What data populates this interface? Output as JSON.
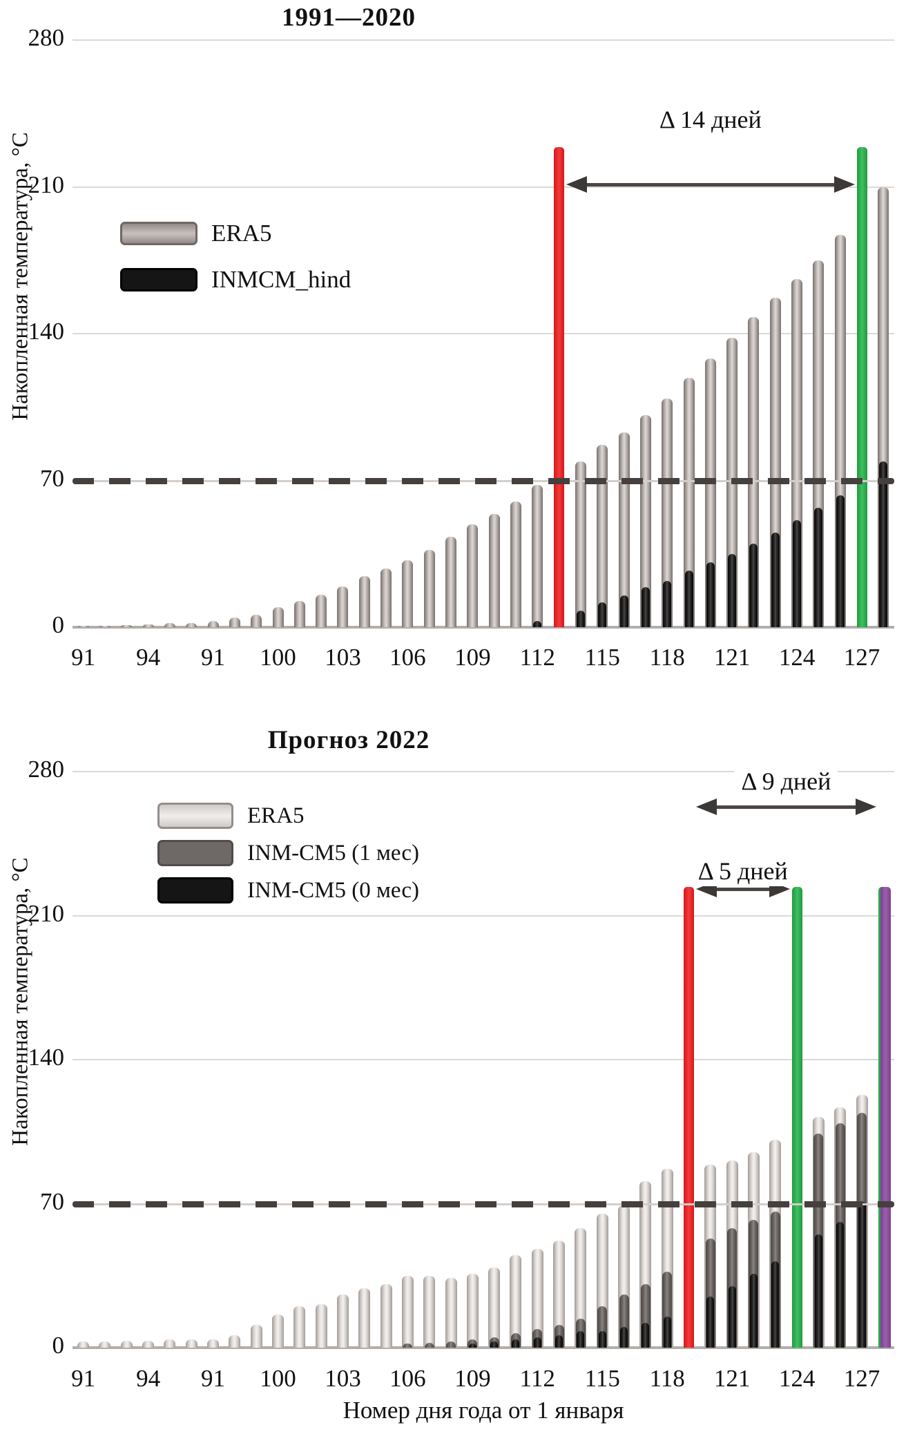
{
  "y_axis_title": "Накопленная температура, °C",
  "x_axis_title": "Номер дня года от 1 января",
  "colors": {
    "era5_hind": "#a9a19d",
    "era5_2022": "#dedad8",
    "inm_1mes": "#6f6a67",
    "black_series": "#141414",
    "red_marker": "#ed2224",
    "green_marker": "#2aa84a",
    "purple_marker": "#8d4f9f",
    "grid": "#dbd9d7",
    "dash_line": "#45403d",
    "arrow": "#4a4542"
  },
  "chart_data": [
    {
      "type": "bar",
      "title": "1991—2020",
      "ylim": [
        0,
        280
      ],
      "y_ticks": [
        "280",
        "210",
        "140",
        "70",
        "0"
      ],
      "x_ticks": [
        "91",
        "94",
        "91",
        "100",
        "103",
        "106",
        "109",
        "112",
        "115",
        "118",
        "121",
        "124",
        "127"
      ],
      "day_start": 91,
      "day_end": 128,
      "threshold_value": 70,
      "legend": [
        {
          "label": "ERA5",
          "color_key": "era5_hind"
        },
        {
          "label": "INMCM_hind",
          "color_key": "black_series"
        }
      ],
      "series": [
        {
          "name": "ERA5",
          "color_key": "era5_hind",
          "values": [
            0.5,
            0.8,
            1,
            1.2,
            2,
            2,
            3,
            4.5,
            6,
            9.5,
            12.5,
            15.5,
            19.5,
            24.5,
            28,
            32,
            37,
            43,
            49,
            54,
            60,
            68,
            null,
            79,
            87,
            93,
            101,
            109,
            119,
            128,
            138,
            148,
            157,
            166,
            175,
            187,
            null,
            210
          ]
        },
        {
          "name": "INMCM_hind",
          "color_key": "black_series",
          "values": [
            0,
            0,
            0,
            0,
            0,
            0,
            0,
            0,
            0,
            0,
            0,
            0,
            0,
            0,
            0,
            0,
            0,
            0,
            0,
            0,
            0,
            3,
            null,
            8,
            12,
            15,
            19,
            22,
            27,
            31,
            35,
            40,
            45,
            51,
            57,
            63,
            null,
            79
          ]
        }
      ],
      "markers": [
        {
          "day": 113,
          "color_key": "red_marker",
          "top_value": 229
        },
        {
          "day": 127,
          "color_key": "green_marker",
          "top_value": 229
        }
      ],
      "annotations": [
        {
          "label": "Δ 14 дней",
          "from_day": 113,
          "to_day": 127,
          "y_value": 211
        }
      ]
    },
    {
      "type": "bar",
      "title": "Прогноз 2022",
      "ylim": [
        0,
        280
      ],
      "y_ticks": [
        "280",
        "210",
        "140",
        "70",
        "0"
      ],
      "x_ticks": [
        "91",
        "94",
        "91",
        "100",
        "103",
        "106",
        "109",
        "112",
        "115",
        "118",
        "121",
        "124",
        "127"
      ],
      "day_start": 91,
      "day_end": 128,
      "threshold_value": 70,
      "legend": [
        {
          "label": "ERA5",
          "color_key": "era5_2022"
        },
        {
          "label": "INM-CM5 (1 мес)",
          "color_key": "inm_1mes"
        },
        {
          "label": "INM-CM5 (0 мес)",
          "color_key": "black_series"
        }
      ],
      "series": [
        {
          "name": "ERA5",
          "color_key": "era5_2022",
          "values": [
            3,
            3,
            3.5,
            3.5,
            4,
            4,
            4,
            6,
            11,
            16,
            20,
            21,
            26,
            29,
            31,
            35,
            35,
            34,
            36,
            39,
            45,
            48,
            52,
            58,
            65,
            69,
            81,
            87,
            null,
            89,
            91,
            95,
            101,
            null,
            112,
            117,
            123,
            null
          ]
        },
        {
          "name": "INM-CM5 (1 мес)",
          "color_key": "inm_1mes",
          "values": [
            0,
            0,
            0,
            0,
            0,
            0,
            0,
            0,
            0,
            0,
            0,
            0,
            0,
            0,
            0,
            2,
            2.5,
            3,
            4,
            5,
            7,
            9,
            11,
            14,
            20,
            26,
            31,
            37,
            null,
            53,
            58,
            62,
            66,
            null,
            104,
            109,
            114,
            null
          ]
        },
        {
          "name": "INM-CM5 (0 мес)",
          "color_key": "black_series",
          "values": [
            0,
            0,
            0,
            0,
            0,
            0,
            0,
            0,
            0,
            0,
            0,
            0,
            0,
            0,
            0,
            0,
            0,
            0,
            2,
            3,
            4,
            5,
            6,
            8,
            8,
            10,
            12,
            15,
            null,
            25,
            30,
            36,
            42,
            null,
            55,
            61,
            71,
            null
          ]
        }
      ],
      "markers": [
        {
          "day": 119,
          "color_key": "red_marker",
          "top_value": 224
        },
        {
          "day": 124,
          "color_key": "green_marker",
          "top_value": 224
        },
        {
          "day": 128,
          "color_key": "purple_marker",
          "top_value": 224
        }
      ],
      "annotations": [
        {
          "label": "Δ 9 дней",
          "from_day": 119,
          "to_day": 128,
          "y_value": 263
        },
        {
          "label": "Δ 5 дней",
          "from_day": 119,
          "to_day": 124,
          "y_value": 223
        }
      ]
    }
  ]
}
